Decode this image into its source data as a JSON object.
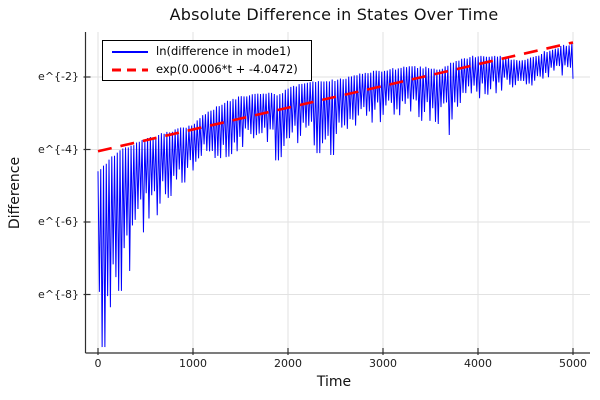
{
  "title": "Absolute Difference in States Over Time",
  "axes": {
    "xlabel": "Time",
    "ylabel": "Difference",
    "x_tick_labels": [
      "0",
      "1000",
      "2000",
      "3000",
      "4000",
      "5000"
    ],
    "y_tick_labels": [
      "e^{-2}",
      "e^{-4}",
      "e^{-6}",
      "e^{-8}"
    ]
  },
  "legend": {
    "position": "top-left",
    "entries": [
      {
        "label": "ln(difference in mode1)",
        "color": "#0000ff",
        "style": "solid"
      },
      {
        "label": "exp(0.0006*t + -4.0472)",
        "color": "#ff0000",
        "style": "dashed"
      }
    ]
  },
  "chart_data": {
    "type": "line",
    "title": "Absolute Difference in States Over Time",
    "xlabel": "Time",
    "ylabel": "Difference",
    "x_range": [
      0,
      5000
    ],
    "y_scale": "natural-log",
    "y_range_ln": [
      -9.6,
      -0.76
    ],
    "x_tick_values": [
      0,
      1000,
      2000,
      3000,
      4000,
      5000
    ],
    "y_tick_ln_values": [
      -2,
      -4,
      -6,
      -8
    ],
    "grid": true,
    "legend_position": "top-left",
    "style": {
      "grid_color": "#e2e2e2",
      "axis_color": "#2e2e2e",
      "background": "#ffffff"
    },
    "series": [
      {
        "name": "ln(difference in mode1)",
        "color": "#0000ff",
        "style": "solid",
        "description": "Rapidly oscillating absolute-difference signal on a log scale; dense vertical spikes between a rising top envelope and a dip envelope, with very deep spikes near t=0 and a final drop at t=5000.",
        "oscillation_period_t": 29,
        "envelope_t_step": 100,
        "envelope_t": [
          0,
          100,
          200,
          300,
          400,
          500,
          600,
          700,
          800,
          900,
          1000,
          1100,
          1200,
          1300,
          1400,
          1500,
          1600,
          1700,
          1800,
          1900,
          2000,
          2100,
          2200,
          2300,
          2400,
          2500,
          2600,
          2700,
          2800,
          2900,
          3000,
          3100,
          3200,
          3300,
          3400,
          3500,
          3600,
          3700,
          3800,
          3900,
          4000,
          4100,
          4200,
          4300,
          4400,
          4500,
          4600,
          4700,
          4800,
          4900,
          5000
        ],
        "envelope_top_ln": [
          -4.6,
          -4.3,
          -4.05,
          -3.92,
          -3.8,
          -3.7,
          -3.6,
          -3.52,
          -3.44,
          -3.37,
          -3.3,
          -3.05,
          -2.88,
          -2.72,
          -2.6,
          -2.52,
          -2.45,
          -2.42,
          -2.4,
          -2.48,
          -2.3,
          -2.2,
          -2.15,
          -2.1,
          -2.1,
          -2.05,
          -2.0,
          -1.92,
          -1.88,
          -1.82,
          -1.8,
          -1.75,
          -1.72,
          -1.68,
          -1.7,
          -1.72,
          -1.75,
          -1.62,
          -1.52,
          -1.42,
          -1.4,
          -1.38,
          -1.4,
          -1.45,
          -1.5,
          -1.48,
          -1.4,
          -1.28,
          -1.18,
          -1.1,
          -1.05
        ],
        "envelope_bottom_ln": [
          -8.6,
          -8.3,
          -7.6,
          -7.1,
          -6.6,
          -6.2,
          -6.0,
          -5.7,
          -5.35,
          -5.0,
          -4.7,
          -4.3,
          -4.25,
          -4.35,
          -4.35,
          -4.05,
          -3.9,
          -3.85,
          -3.9,
          -4.3,
          -4.1,
          -4.0,
          -3.85,
          -4.05,
          -3.9,
          -4.1,
          -3.6,
          -3.5,
          -3.4,
          -3.3,
          -3.25,
          -3.2,
          -3.1,
          -3.15,
          -3.2,
          -3.4,
          -3.3,
          -3.35,
          -3.1,
          -2.75,
          -2.65,
          -2.55,
          -2.45,
          -2.35,
          -2.25,
          -2.25,
          -2.25,
          -2.15,
          -2.05,
          -2.0,
          -2.05
        ],
        "deep_spikes": [
          {
            "t": 55,
            "ln": -9.45
          },
          {
            "t": 125,
            "ln": -8.35
          },
          {
            "t": 230,
            "ln": -7.9
          },
          {
            "t": 330,
            "ln": -7.35
          },
          {
            "t": 1880,
            "ln": -4.3
          },
          {
            "t": 2320,
            "ln": -4.1
          },
          {
            "t": 2470,
            "ln": -4.15
          },
          {
            "t": 3700,
            "ln": -3.6
          }
        ],
        "end_value_ln": -2.05
      },
      {
        "name": "exp(0.0006*t + -4.0472)",
        "color": "#ff0000",
        "style": "dashed",
        "fit": {
          "slope": 0.0006,
          "intercept": -4.0472
        },
        "points_ln": [
          [
            0,
            -4.0472
          ],
          [
            5000,
            -1.0472
          ]
        ]
      }
    ]
  }
}
